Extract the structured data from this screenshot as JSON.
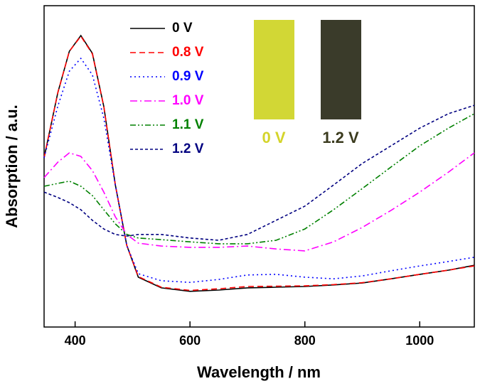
{
  "chart_data": {
    "type": "line",
    "xlabel": "Wavelength / nm",
    "ylabel": "Absorption / a.u.",
    "x": [
      346,
      370,
      390,
      410,
      430,
      450,
      470,
      490,
      510,
      550,
      600,
      650,
      700,
      750,
      800,
      850,
      900,
      950,
      1000,
      1050,
      1095
    ],
    "xlim": [
      346,
      1095
    ],
    "xticks": [
      400,
      600,
      800,
      1000
    ],
    "ylim": [
      0,
      1
    ],
    "legend": "upper left",
    "series": [
      {
        "name": "0 V",
        "color": "#000000",
        "linestyle": "solid",
        "values": [
          0.527,
          0.73,
          0.858,
          0.907,
          0.852,
          0.686,
          0.442,
          0.254,
          0.155,
          0.122,
          0.111,
          0.115,
          0.122,
          0.124,
          0.126,
          0.131,
          0.137,
          0.15,
          0.164,
          0.177,
          0.192
        ]
      },
      {
        "name": "0.8 V",
        "color": "#ff0000",
        "linestyle": "dashed",
        "values": [
          0.527,
          0.73,
          0.858,
          0.905,
          0.85,
          0.686,
          0.442,
          0.254,
          0.157,
          0.124,
          0.114,
          0.119,
          0.126,
          0.127,
          0.128,
          0.132,
          0.138,
          0.15,
          0.164,
          0.177,
          0.19
        ]
      },
      {
        "name": "0.9 V",
        "color": "#0000ff",
        "linestyle": "dotted",
        "values": [
          0.527,
          0.688,
          0.796,
          0.836,
          0.785,
          0.65,
          0.442,
          0.254,
          0.166,
          0.144,
          0.139,
          0.148,
          0.162,
          0.164,
          0.155,
          0.15,
          0.159,
          0.175,
          0.19,
          0.204,
          0.217
        ]
      },
      {
        "name": "1.0 V",
        "color": "#ff00ff",
        "linestyle": "dashdot",
        "values": [
          0.465,
          0.513,
          0.542,
          0.531,
          0.487,
          0.42,
          0.343,
          0.288,
          0.261,
          0.252,
          0.248,
          0.248,
          0.252,
          0.243,
          0.237,
          0.265,
          0.31,
          0.363,
          0.42,
          0.482,
          0.542
        ]
      },
      {
        "name": "1.1 V",
        "color": "#008000",
        "linestyle": "dashdotdot",
        "values": [
          0.438,
          0.447,
          0.454,
          0.438,
          0.409,
          0.365,
          0.321,
          0.288,
          0.277,
          0.272,
          0.265,
          0.259,
          0.259,
          0.27,
          0.305,
          0.365,
          0.431,
          0.498,
          0.564,
          0.619,
          0.664
        ]
      },
      {
        "name": "1.2 V",
        "color": "#000080",
        "linestyle": "shortdash",
        "values": [
          0.42,
          0.403,
          0.387,
          0.365,
          0.332,
          0.305,
          0.288,
          0.283,
          0.288,
          0.288,
          0.277,
          0.27,
          0.288,
          0.332,
          0.376,
          0.442,
          0.509,
          0.564,
          0.619,
          0.664,
          0.69
        ]
      }
    ],
    "insets": [
      {
        "label": "0 V",
        "color": "#d2d735",
        "label_color": "#d4d42a"
      },
      {
        "label": "1.2 V",
        "color": "#3a3b2a",
        "label_color": "#3b3b1e"
      }
    ]
  }
}
